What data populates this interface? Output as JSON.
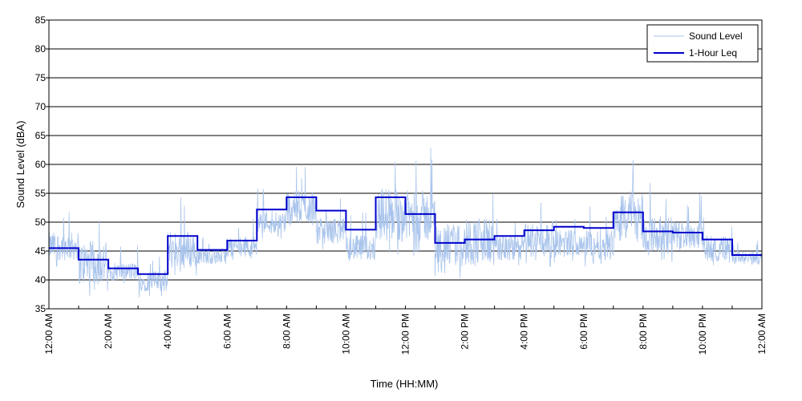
{
  "chart_data": {
    "type": "line",
    "title": "",
    "xlabel": "Time (HH:MM)",
    "ylabel": "Sound Level (dBA)",
    "ylim": [
      35,
      85
    ],
    "yticks": [
      35,
      40,
      45,
      50,
      55,
      60,
      65,
      70,
      75,
      80,
      85
    ],
    "xlim_hours": [
      0,
      24
    ],
    "xtick_hours": [
      0,
      2,
      4,
      6,
      8,
      10,
      12,
      14,
      16,
      18,
      20,
      22,
      24
    ],
    "xtick_labels": [
      "12:00 AM",
      "2:00 AM",
      "4:00 AM",
      "6:00 AM",
      "8:00 AM",
      "10:00 AM",
      "12:00 PM",
      "2:00 PM",
      "4:00 PM",
      "6:00 PM",
      "8:00 PM",
      "10:00 PM",
      "12:00 AM"
    ],
    "grid": "horizontal",
    "legend_position": "top-right",
    "series": [
      {
        "name": "Sound Level",
        "color": "#a9c4ec",
        "note_hourly_ranges": [
          {
            "hour": 0,
            "min": 42,
            "max": 53
          },
          {
            "hour": 1,
            "min": 37,
            "max": 54
          },
          {
            "hour": 2,
            "min": 39,
            "max": 46
          },
          {
            "hour": 3,
            "min": 37,
            "max": 45
          },
          {
            "hour": 4,
            "min": 40,
            "max": 55
          },
          {
            "hour": 5,
            "min": 42,
            "max": 48
          },
          {
            "hour": 6,
            "min": 43,
            "max": 51
          },
          {
            "hour": 7,
            "min": 47,
            "max": 56
          },
          {
            "hour": 8,
            "min": 48,
            "max": 61
          },
          {
            "hour": 9,
            "min": 45,
            "max": 55
          },
          {
            "hour": 10,
            "min": 42,
            "max": 52
          },
          {
            "hour": 11,
            "min": 44,
            "max": 65
          },
          {
            "hour": 12,
            "min": 44,
            "max": 64
          },
          {
            "hour": 13,
            "min": 40,
            "max": 57
          },
          {
            "hour": 14,
            "min": 40,
            "max": 59
          },
          {
            "hour": 15,
            "min": 42,
            "max": 52
          },
          {
            "hour": 16,
            "min": 42,
            "max": 56
          },
          {
            "hour": 17,
            "min": 43,
            "max": 53
          },
          {
            "hour": 18,
            "min": 42,
            "max": 54
          },
          {
            "hour": 19,
            "min": 44,
            "max": 64
          },
          {
            "hour": 20,
            "min": 43,
            "max": 57
          },
          {
            "hour": 21,
            "min": 44,
            "max": 55
          },
          {
            "hour": 22,
            "min": 42,
            "max": 52
          },
          {
            "hour": 23,
            "min": 42,
            "max": 47
          }
        ]
      },
      {
        "name": "1-Hour Leq",
        "color": "#0000cc",
        "hours": [
          0,
          1,
          2,
          3,
          4,
          5,
          6,
          7,
          8,
          9,
          10,
          11,
          12,
          13,
          14,
          15,
          16,
          17,
          18,
          19,
          20,
          21,
          22,
          23
        ],
        "values": [
          45.5,
          43.5,
          42.0,
          41.0,
          47.6,
          45.2,
          46.8,
          52.2,
          54.3,
          52.0,
          48.7,
          54.3,
          51.4,
          46.4,
          47.0,
          47.6,
          48.6,
          49.2,
          49.0,
          51.7,
          48.4,
          48.2,
          47.0,
          44.3
        ]
      }
    ]
  }
}
